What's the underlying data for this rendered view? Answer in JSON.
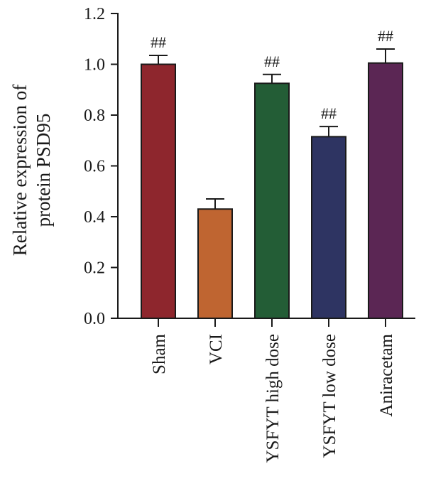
{
  "chart_data": {
    "type": "bar",
    "ylabel_lines": [
      "Relative expression of",
      "protein PSD95"
    ],
    "ylim": [
      0,
      1.2
    ],
    "yticks": [
      0.0,
      0.2,
      0.4,
      0.6,
      0.8,
      1.0,
      1.2
    ],
    "ytick_labels": [
      "0.0",
      "0.2",
      "0.4",
      "0.6",
      "0.8",
      "1.0",
      "1.2"
    ],
    "categories": [
      "Sham",
      "VCI",
      "YSFYT high dose",
      "YSFYT low dose",
      "Aniracetam"
    ],
    "values": [
      1.0,
      0.43,
      0.925,
      0.715,
      1.005
    ],
    "errors": [
      0.035,
      0.04,
      0.035,
      0.04,
      0.055
    ],
    "significance": [
      "##",
      "",
      "##",
      "##",
      "##"
    ],
    "colors": [
      "#8e262d",
      "#bf6531",
      "#235d36",
      "#2e3462",
      "#5b2654"
    ],
    "grid": false
  }
}
